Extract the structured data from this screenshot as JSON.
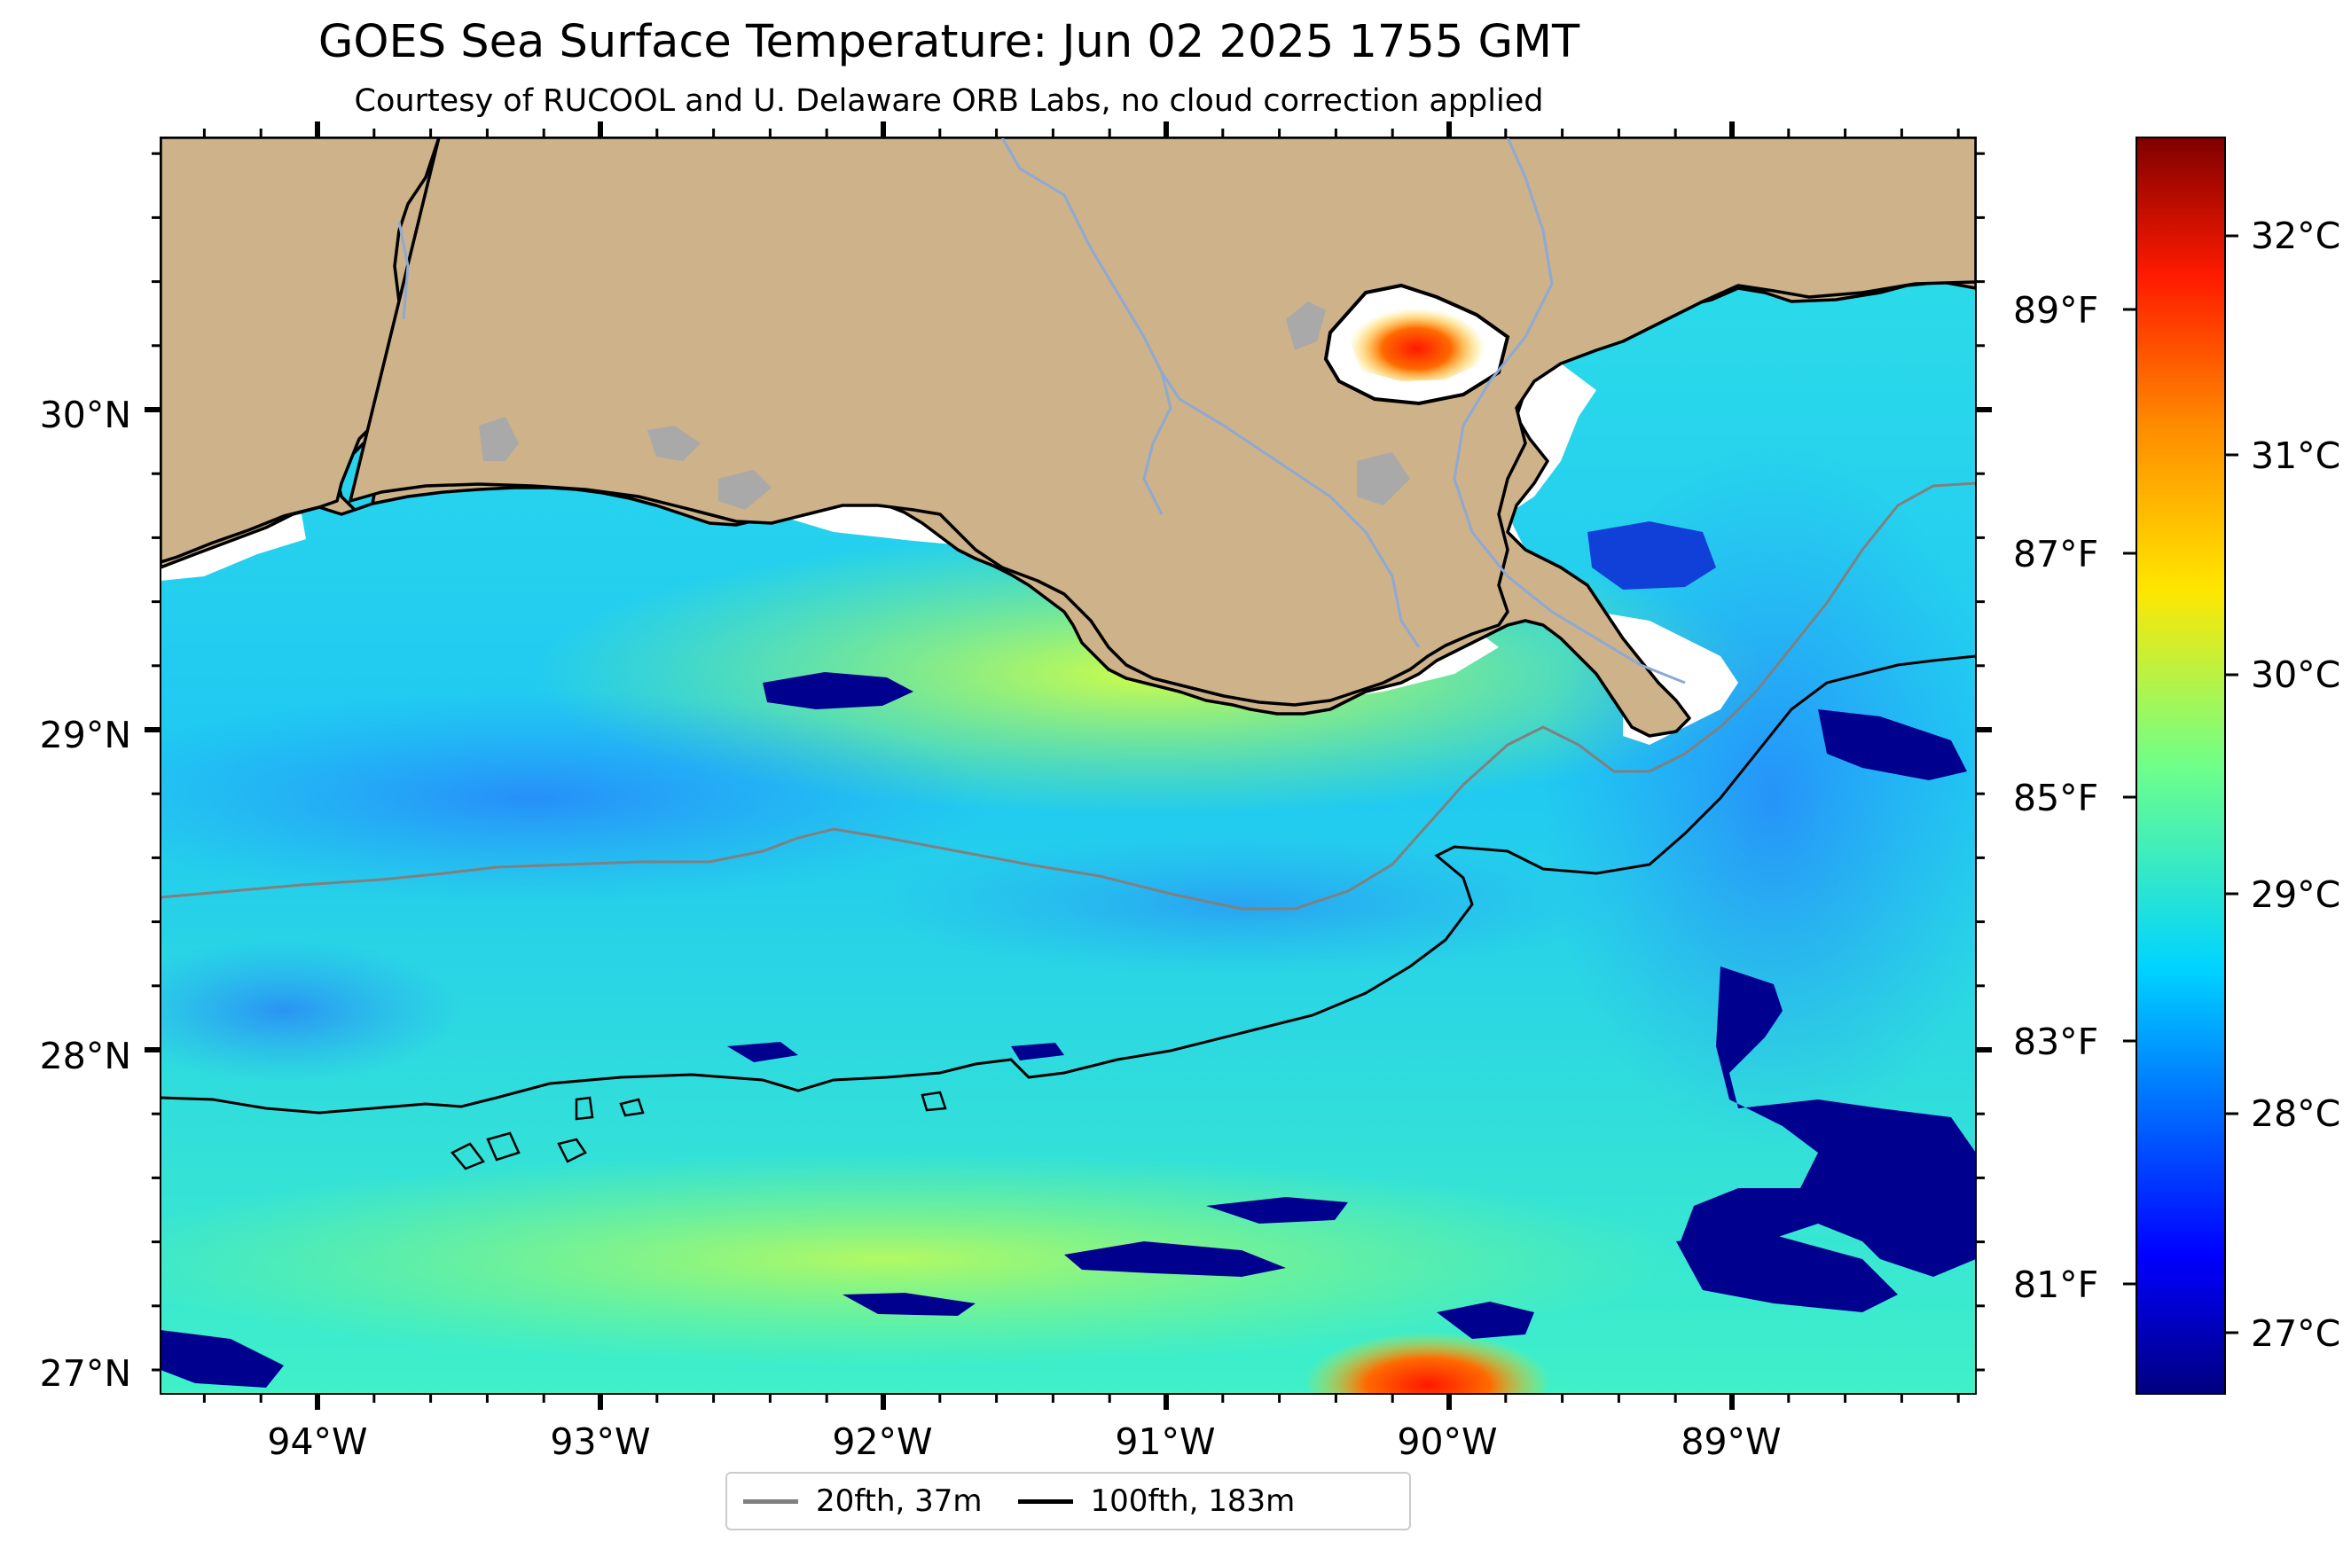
{
  "title": "GOES Sea Surface Temperature: Jun 02 2025 1755 GMT",
  "subtitle": "Courtesy of RUCOOL and U. Delaware ORB Labs, no cloud correction applied",
  "axes": {
    "lon_labels": [
      "94°W",
      "93°W",
      "92°W",
      "91°W",
      "90°W",
      "89°W"
    ],
    "lat_labels": [
      "30°N",
      "29°N",
      "28°N",
      "27°N"
    ],
    "lon_range": [
      -94.55,
      -88.2
    ],
    "lat_range": [
      26.93,
      30.85
    ]
  },
  "colorbar": {
    "celsius_labels": [
      "32°C",
      "31°C",
      "30°C",
      "29°C",
      "28°C",
      "27°C"
    ],
    "fahrenheit_labels": [
      "89°F",
      "87°F",
      "85°F",
      "83°F",
      "81°F"
    ],
    "range_c": [
      26.6,
      32.4
    ],
    "colormap": "jet"
  },
  "legend": {
    "items": [
      {
        "label": "20fth, 37m",
        "color": "#808080"
      },
      {
        "label": "100fth, 183m",
        "color": "#000000"
      }
    ]
  },
  "colors": {
    "land": "#CDB28A",
    "lakes": "#A9A9A9",
    "rivers": "#8EA9D4",
    "isobath_20fth": "#808080",
    "isobath_100fth": "#000000"
  }
}
